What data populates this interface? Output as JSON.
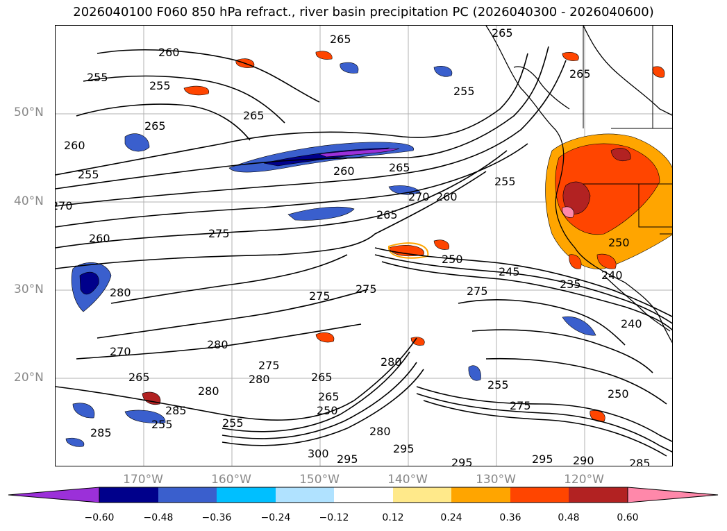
{
  "title": "2026040100 F060 850 hPa refract., river basin precipitation PC (2026040300 - 2026040600)",
  "lat_labels": [
    "50°N",
    "40°N",
    "30°N",
    "20°N"
  ],
  "lon_labels": [
    "170°W",
    "160°W",
    "150°W",
    "140°W",
    "130°W",
    "120°W"
  ],
  "colorbar": {
    "ticks": [
      "−0.60",
      "−0.48",
      "−0.36",
      "−0.24",
      "−0.12",
      "0.12",
      "0.24",
      "0.36",
      "0.48",
      "0.60"
    ],
    "colors": [
      "#9b30d9",
      "#00008b",
      "#3a5fcd",
      "#00bfff",
      "#b0e2ff",
      "#ffffff",
      "#ffe98a",
      "#ffa500",
      "#ff4500",
      "#b22222",
      "#ff88aa"
    ]
  },
  "contour_labels": [
    {
      "text": "260"
    },
    {
      "text": "265"
    },
    {
      "text": "265"
    },
    {
      "text": "255"
    },
    {
      "text": "255"
    },
    {
      "text": "265"
    },
    {
      "text": "265"
    },
    {
      "text": "265"
    },
    {
      "text": "260"
    },
    {
      "text": "255"
    },
    {
      "text": "255"
    },
    {
      "text": "270"
    },
    {
      "text": "260"
    },
    {
      "text": "275"
    },
    {
      "text": "260"
    },
    {
      "text": "265"
    },
    {
      "text": "270"
    },
    {
      "text": "265"
    },
    {
      "text": "260"
    },
    {
      "text": "255"
    },
    {
      "text": "280"
    },
    {
      "text": "275"
    },
    {
      "text": "275"
    },
    {
      "text": "250"
    },
    {
      "text": "275"
    },
    {
      "text": "245"
    },
    {
      "text": "235"
    },
    {
      "text": "250"
    },
    {
      "text": "240"
    },
    {
      "text": "240"
    },
    {
      "text": "270"
    },
    {
      "text": "280"
    },
    {
      "text": "265"
    },
    {
      "text": "275"
    },
    {
      "text": "280"
    },
    {
      "text": "265"
    },
    {
      "text": "280"
    },
    {
      "text": "265"
    },
    {
      "text": "255"
    },
    {
      "text": "280"
    },
    {
      "text": "255"
    },
    {
      "text": "250"
    },
    {
      "text": "275"
    },
    {
      "text": "285"
    },
    {
      "text": "255"
    },
    {
      "text": "285"
    },
    {
      "text": "250"
    },
    {
      "text": "280"
    },
    {
      "text": "300"
    },
    {
      "text": "295"
    },
    {
      "text": "295"
    },
    {
      "text": "295"
    },
    {
      "text": "295"
    },
    {
      "text": "290"
    },
    {
      "text": "285"
    }
  ]
}
